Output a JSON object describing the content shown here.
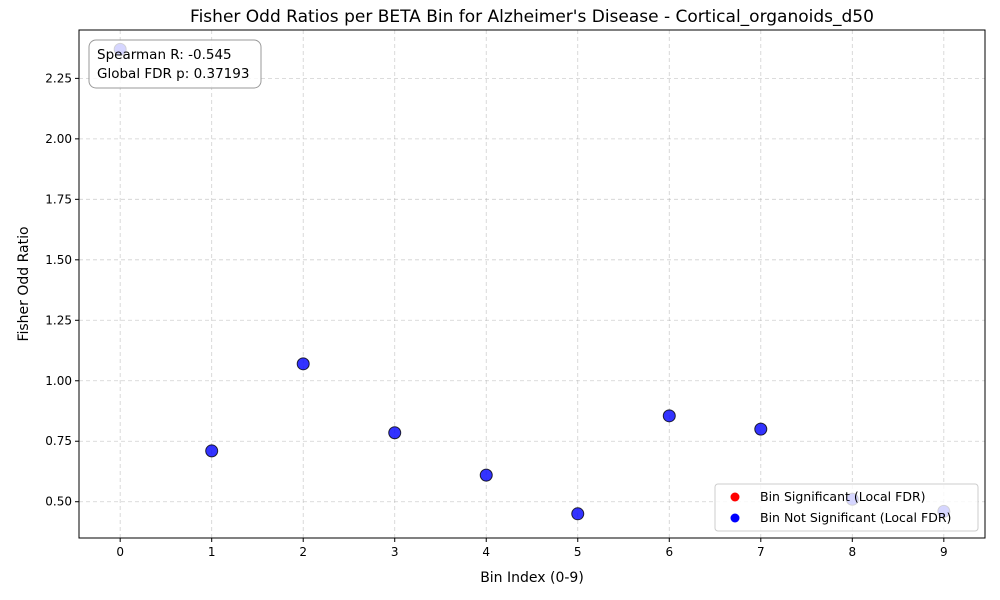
{
  "chart_data": {
    "type": "scatter",
    "title": "Fisher Odd Ratios per BETA Bin for Alzheimer's Disease - Cortical_organoids_d50",
    "xlabel": "Bin Index (0-9)",
    "ylabel": "Fisher Odd Ratio",
    "xlim": [
      -0.45,
      9.45
    ],
    "ylim": [
      0.35,
      2.45
    ],
    "xticks": [
      0,
      1,
      2,
      3,
      4,
      5,
      6,
      7,
      8,
      9
    ],
    "yticks": [
      0.5,
      0.75,
      1.0,
      1.25,
      1.5,
      1.75,
      2.0,
      2.25
    ],
    "ytick_labels": [
      "0.50",
      "0.75",
      "1.00",
      "1.25",
      "1.50",
      "1.75",
      "2.00",
      "2.25"
    ],
    "grid": true,
    "legend_position": "lower-right",
    "series": [
      {
        "name": "Bin Significant (Local FDR)",
        "color": "#ff0000",
        "x": [],
        "y": []
      },
      {
        "name": "Bin Not Significant (Local FDR)",
        "color": "#0000ff",
        "x": [
          0,
          1,
          2,
          3,
          4,
          5,
          6,
          7,
          8,
          9
        ],
        "y": [
          2.37,
          0.71,
          1.07,
          0.785,
          0.61,
          0.45,
          0.855,
          0.8,
          0.51,
          0.46
        ]
      }
    ],
    "annotations": [
      "Spearman R: -0.545",
      "Global FDR p: 0.37193"
    ]
  }
}
